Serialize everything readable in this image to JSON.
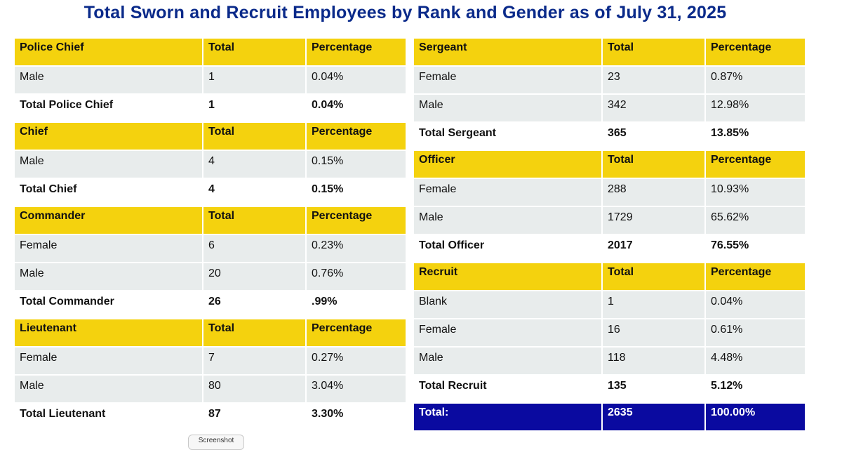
{
  "title": "Total Sworn and Recruit Employees by Rank and Gender as of July 31, 2025",
  "left_sections": [
    {
      "header": [
        "Police Chief",
        "Total",
        "Percentage"
      ],
      "rows": [
        [
          "Male",
          "1",
          "0.04%"
        ]
      ],
      "total": [
        "Total Police Chief",
        "1",
        "0.04%"
      ]
    },
    {
      "header": [
        "Chief",
        "Total",
        "Percentage"
      ],
      "rows": [
        [
          "Male",
          "4",
          "0.15%"
        ]
      ],
      "total": [
        "Total Chief",
        "4",
        "0.15%"
      ]
    },
    {
      "header": [
        "Commander",
        "Total",
        "Percentage"
      ],
      "rows": [
        [
          "Female",
          "6",
          "0.23%"
        ],
        [
          "Male",
          "20",
          "0.76%"
        ]
      ],
      "total": [
        "Total Commander",
        "26",
        ".99%"
      ]
    },
    {
      "header": [
        "Lieutenant",
        "Total",
        "Percentage"
      ],
      "rows": [
        [
          "Female",
          "7",
          "0.27%"
        ],
        [
          "Male",
          "80",
          "3.04%"
        ]
      ],
      "total": [
        "Total Lieutenant",
        "87",
        "3.30%"
      ]
    }
  ],
  "right_sections": [
    {
      "header": [
        "Sergeant",
        "Total",
        "Percentage"
      ],
      "rows": [
        [
          "Female",
          "23",
          "0.87%"
        ],
        [
          "Male",
          "342",
          "12.98%"
        ]
      ],
      "total": [
        "Total Sergeant",
        "365",
        "13.85%"
      ]
    },
    {
      "header": [
        "Officer",
        "Total",
        "Percentage"
      ],
      "rows": [
        [
          "Female",
          "288",
          "10.93%"
        ],
        [
          "Male",
          "1729",
          "65.62%"
        ]
      ],
      "total": [
        "Total Officer",
        "2017",
        "76.55%"
      ]
    },
    {
      "header": [
        "Recruit",
        "Total",
        "Percentage"
      ],
      "rows": [
        [
          "Blank",
          "1",
          "0.04%"
        ],
        [
          "Female",
          "16",
          "0.61%"
        ],
        [
          "Male",
          "118",
          "4.48%"
        ]
      ],
      "total": [
        "Total Recruit",
        "135",
        "5.12%"
      ]
    }
  ],
  "grand_total": [
    "Total:",
    "2635",
    "100.00%"
  ],
  "screenshot_button": "Screenshot",
  "colors": {
    "title": "#0a2a8a",
    "header_bg": "#f4d20e",
    "row_bg": "#e8ecec",
    "grand_bg": "#0a0aa0"
  }
}
